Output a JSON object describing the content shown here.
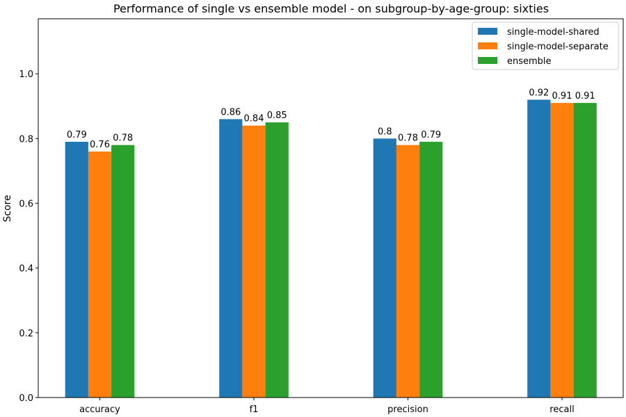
{
  "chart_data": {
    "type": "bar",
    "title": "Performance of single vs ensemble model - on subgroup-by-age-group: sixties",
    "xlabel": "",
    "ylabel": "Score",
    "ylim": [
      0,
      1.17
    ],
    "yticks": [
      0.0,
      0.2,
      0.4,
      0.6,
      0.8,
      1.0
    ],
    "ytick_labels": [
      "0.0",
      "0.2",
      "0.4",
      "0.6",
      "0.8",
      "1.0"
    ],
    "categories": [
      "accuracy",
      "f1",
      "precision",
      "recall"
    ],
    "series": [
      {
        "name": "single-model-shared",
        "color": "#1f77b4",
        "values": [
          0.79,
          0.86,
          0.8,
          0.92
        ],
        "labels": [
          "0.79",
          "0.86",
          "0.8",
          "0.92"
        ]
      },
      {
        "name": "single-model-separate",
        "color": "#ff7f0e",
        "values": [
          0.76,
          0.84,
          0.78,
          0.91
        ],
        "labels": [
          "0.76",
          "0.84",
          "0.78",
          "0.91"
        ]
      },
      {
        "name": "ensemble",
        "color": "#2ca02c",
        "values": [
          0.78,
          0.85,
          0.79,
          0.91
        ],
        "labels": [
          "0.78",
          "0.85",
          "0.79",
          "0.91"
        ]
      }
    ],
    "grid": false,
    "legend_position": "top-right"
  }
}
